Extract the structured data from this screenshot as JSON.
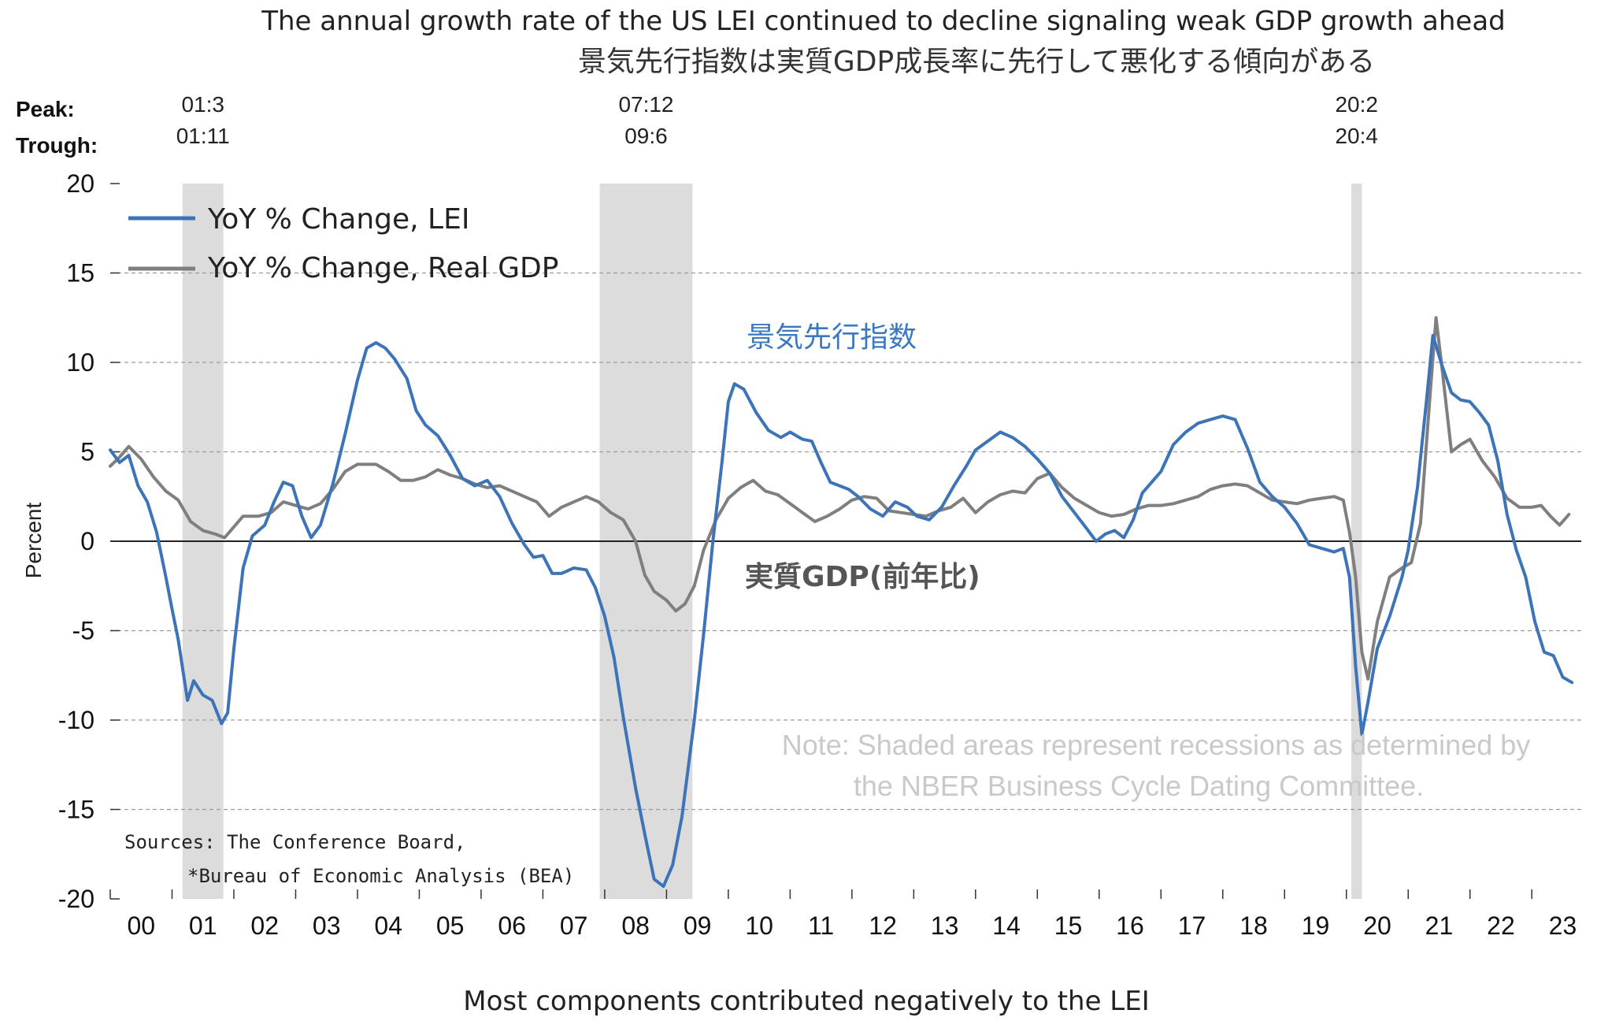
{
  "title": "The annual growth rate of the US LEI continued to decline signaling weak GDP growth ahead",
  "subtitle": "景気先行指数は実質GDP成長率に先行して悪化する傾向がある",
  "caption": "Most components contributed negatively to the LEI",
  "peak_label": "Peak:",
  "trough_label": "Trough:",
  "annotations": {
    "lei": "景気先行指数",
    "gdp": "実質GDP(前年比)",
    "note_line1": "Note: Shaded areas represent recessions as determined by",
    "note_line2": "the NBER Business Cycle Dating Committee.",
    "source_line1": "Sources: The Conference Board,",
    "source_line2": "*Bureau of Economic Analysis (BEA)"
  },
  "chart_data": {
    "type": "line",
    "ylabel": "Percent",
    "xlabel": "",
    "ylim": [
      -20,
      20
    ],
    "yticks": [
      -20,
      -15,
      -10,
      -5,
      0,
      5,
      10,
      15,
      20
    ],
    "xlim": [
      2000,
      2023.8
    ],
    "xtick_labels": [
      "00",
      "01",
      "02",
      "03",
      "04",
      "05",
      "06",
      "07",
      "08",
      "09",
      "10",
      "11",
      "12",
      "13",
      "14",
      "15",
      "16",
      "17",
      "18",
      "19",
      "20",
      "21",
      "22",
      "23"
    ],
    "grid": "horizontal-dashed",
    "legend_position": "top-left",
    "recessions": [
      {
        "peak": "01:3",
        "trough": "01:11",
        "start": 2001.17,
        "end": 2001.83
      },
      {
        "peak": "07:12",
        "trough": "09:6",
        "start": 2007.92,
        "end": 2009.42
      },
      {
        "peak": "20:2",
        "trough": "20:4",
        "start": 2020.08,
        "end": 2020.25
      }
    ],
    "series": [
      {
        "name": "YoY % Change, LEI",
        "color": "#3d74b8",
        "points": [
          [
            2000.0,
            5.1
          ],
          [
            2000.15,
            4.4
          ],
          [
            2000.3,
            4.8
          ],
          [
            2000.45,
            3.1
          ],
          [
            2000.6,
            2.2
          ],
          [
            2000.75,
            0.5
          ],
          [
            2000.9,
            -2.0
          ],
          [
            2001.0,
            -3.8
          ],
          [
            2001.1,
            -5.5
          ],
          [
            2001.25,
            -8.9
          ],
          [
            2001.35,
            -7.8
          ],
          [
            2001.5,
            -8.6
          ],
          [
            2001.65,
            -8.9
          ],
          [
            2001.8,
            -10.2
          ],
          [
            2001.9,
            -9.6
          ],
          [
            2002.0,
            -6.0
          ],
          [
            2002.15,
            -1.5
          ],
          [
            2002.3,
            0.3
          ],
          [
            2002.5,
            0.9
          ],
          [
            2002.65,
            2.2
          ],
          [
            2002.8,
            3.3
          ],
          [
            2002.95,
            3.1
          ],
          [
            2003.1,
            1.4
          ],
          [
            2003.25,
            0.2
          ],
          [
            2003.4,
            0.9
          ],
          [
            2003.6,
            3.2
          ],
          [
            2003.8,
            6.0
          ],
          [
            2004.0,
            9.0
          ],
          [
            2004.15,
            10.8
          ],
          [
            2004.3,
            11.1
          ],
          [
            2004.45,
            10.8
          ],
          [
            2004.6,
            10.2
          ],
          [
            2004.8,
            9.1
          ],
          [
            2004.95,
            7.3
          ],
          [
            2005.1,
            6.5
          ],
          [
            2005.3,
            5.9
          ],
          [
            2005.5,
            4.8
          ],
          [
            2005.7,
            3.5
          ],
          [
            2005.9,
            3.1
          ],
          [
            2006.1,
            3.4
          ],
          [
            2006.3,
            2.5
          ],
          [
            2006.5,
            1.0
          ],
          [
            2006.7,
            -0.2
          ],
          [
            2006.85,
            -0.9
          ],
          [
            2007.0,
            -0.8
          ],
          [
            2007.15,
            -1.8
          ],
          [
            2007.3,
            -1.8
          ],
          [
            2007.5,
            -1.5
          ],
          [
            2007.7,
            -1.6
          ],
          [
            2007.85,
            -2.6
          ],
          [
            2008.0,
            -4.2
          ],
          [
            2008.15,
            -6.5
          ],
          [
            2008.3,
            -9.8
          ],
          [
            2008.5,
            -13.8
          ],
          [
            2008.65,
            -16.4
          ],
          [
            2008.8,
            -18.9
          ],
          [
            2008.95,
            -19.3
          ],
          [
            2009.1,
            -18.1
          ],
          [
            2009.25,
            -15.4
          ],
          [
            2009.45,
            -10.0
          ],
          [
            2009.6,
            -5.2
          ],
          [
            2009.75,
            0.0
          ],
          [
            2009.9,
            4.5
          ],
          [
            2010.0,
            7.8
          ],
          [
            2010.1,
            8.8
          ],
          [
            2010.25,
            8.5
          ],
          [
            2010.45,
            7.2
          ],
          [
            2010.65,
            6.2
          ],
          [
            2010.85,
            5.8
          ],
          [
            2011.0,
            6.1
          ],
          [
            2011.2,
            5.7
          ],
          [
            2011.35,
            5.6
          ],
          [
            2011.5,
            4.4
          ],
          [
            2011.65,
            3.3
          ],
          [
            2011.8,
            3.1
          ],
          [
            2011.95,
            2.9
          ],
          [
            2012.1,
            2.5
          ],
          [
            2012.3,
            1.8
          ],
          [
            2012.5,
            1.4
          ],
          [
            2012.7,
            2.2
          ],
          [
            2012.9,
            1.9
          ],
          [
            2013.05,
            1.4
          ],
          [
            2013.25,
            1.2
          ],
          [
            2013.45,
            1.9
          ],
          [
            2013.65,
            3.1
          ],
          [
            2013.85,
            4.2
          ],
          [
            2014.0,
            5.1
          ],
          [
            2014.2,
            5.6
          ],
          [
            2014.4,
            6.1
          ],
          [
            2014.6,
            5.8
          ],
          [
            2014.8,
            5.3
          ],
          [
            2015.0,
            4.6
          ],
          [
            2015.2,
            3.8
          ],
          [
            2015.4,
            2.5
          ],
          [
            2015.6,
            1.6
          ],
          [
            2015.8,
            0.7
          ],
          [
            2015.95,
            0.0
          ],
          [
            2016.1,
            0.4
          ],
          [
            2016.25,
            0.6
          ],
          [
            2016.4,
            0.2
          ],
          [
            2016.55,
            1.2
          ],
          [
            2016.7,
            2.7
          ],
          [
            2016.85,
            3.3
          ],
          [
            2017.0,
            3.9
          ],
          [
            2017.2,
            5.4
          ],
          [
            2017.4,
            6.1
          ],
          [
            2017.6,
            6.6
          ],
          [
            2017.8,
            6.8
          ],
          [
            2018.0,
            7.0
          ],
          [
            2018.2,
            6.8
          ],
          [
            2018.4,
            5.2
          ],
          [
            2018.6,
            3.3
          ],
          [
            2018.8,
            2.5
          ],
          [
            2019.0,
            1.9
          ],
          [
            2019.2,
            1.0
          ],
          [
            2019.4,
            -0.2
          ],
          [
            2019.6,
            -0.4
          ],
          [
            2019.8,
            -0.6
          ],
          [
            2019.95,
            -0.4
          ],
          [
            2020.05,
            -2.0
          ],
          [
            2020.15,
            -7.0
          ],
          [
            2020.25,
            -10.8
          ],
          [
            2020.35,
            -9.0
          ],
          [
            2020.5,
            -6.0
          ],
          [
            2020.7,
            -4.2
          ],
          [
            2020.9,
            -2.0
          ],
          [
            2021.0,
            -0.5
          ],
          [
            2021.15,
            3.0
          ],
          [
            2021.3,
            8.0
          ],
          [
            2021.4,
            11.5
          ],
          [
            2021.55,
            9.8
          ],
          [
            2021.7,
            8.3
          ],
          [
            2021.85,
            7.9
          ],
          [
            2022.0,
            7.8
          ],
          [
            2022.15,
            7.2
          ],
          [
            2022.3,
            6.5
          ],
          [
            2022.45,
            4.5
          ],
          [
            2022.6,
            1.5
          ],
          [
            2022.75,
            -0.5
          ],
          [
            2022.9,
            -2.0
          ],
          [
            2023.05,
            -4.5
          ],
          [
            2023.2,
            -6.2
          ],
          [
            2023.35,
            -6.4
          ],
          [
            2023.5,
            -7.6
          ],
          [
            2023.65,
            -7.9
          ]
        ]
      },
      {
        "name": "YoY % Change, Real GDP",
        "color": "#7f7f7f",
        "points": [
          [
            2000.0,
            4.2
          ],
          [
            2000.15,
            4.7
          ],
          [
            2000.3,
            5.3
          ],
          [
            2000.5,
            4.6
          ],
          [
            2000.7,
            3.6
          ],
          [
            2000.9,
            2.8
          ],
          [
            2001.1,
            2.3
          ],
          [
            2001.3,
            1.1
          ],
          [
            2001.5,
            0.6
          ],
          [
            2001.7,
            0.4
          ],
          [
            2001.85,
            0.2
          ],
          [
            2002.0,
            0.8
          ],
          [
            2002.15,
            1.4
          ],
          [
            2002.4,
            1.4
          ],
          [
            2002.6,
            1.6
          ],
          [
            2002.8,
            2.2
          ],
          [
            2003.0,
            2.0
          ],
          [
            2003.2,
            1.8
          ],
          [
            2003.4,
            2.1
          ],
          [
            2003.6,
            2.9
          ],
          [
            2003.8,
            3.9
          ],
          [
            2004.0,
            4.3
          ],
          [
            2004.3,
            4.3
          ],
          [
            2004.5,
            3.9
          ],
          [
            2004.7,
            3.4
          ],
          [
            2004.9,
            3.4
          ],
          [
            2005.1,
            3.6
          ],
          [
            2005.3,
            4.0
          ],
          [
            2005.5,
            3.7
          ],
          [
            2005.7,
            3.5
          ],
          [
            2005.9,
            3.2
          ],
          [
            2006.1,
            3.0
          ],
          [
            2006.3,
            3.1
          ],
          [
            2006.5,
            2.8
          ],
          [
            2006.7,
            2.5
          ],
          [
            2006.9,
            2.2
          ],
          [
            2007.1,
            1.4
          ],
          [
            2007.3,
            1.9
          ],
          [
            2007.5,
            2.2
          ],
          [
            2007.7,
            2.5
          ],
          [
            2007.9,
            2.2
          ],
          [
            2008.1,
            1.6
          ],
          [
            2008.3,
            1.2
          ],
          [
            2008.5,
            0.0
          ],
          [
            2008.65,
            -1.9
          ],
          [
            2008.8,
            -2.8
          ],
          [
            2009.0,
            -3.3
          ],
          [
            2009.15,
            -3.9
          ],
          [
            2009.3,
            -3.5
          ],
          [
            2009.45,
            -2.5
          ],
          [
            2009.6,
            -0.5
          ],
          [
            2009.8,
            1.2
          ],
          [
            2010.0,
            2.4
          ],
          [
            2010.2,
            3.0
          ],
          [
            2010.4,
            3.4
          ],
          [
            2010.6,
            2.8
          ],
          [
            2010.8,
            2.6
          ],
          [
            2011.0,
            2.1
          ],
          [
            2011.2,
            1.6
          ],
          [
            2011.4,
            1.1
          ],
          [
            2011.6,
            1.4
          ],
          [
            2011.8,
            1.8
          ],
          [
            2012.0,
            2.3
          ],
          [
            2012.2,
            2.5
          ],
          [
            2012.4,
            2.4
          ],
          [
            2012.6,
            1.7
          ],
          [
            2012.8,
            1.6
          ],
          [
            2013.0,
            1.5
          ],
          [
            2013.2,
            1.4
          ],
          [
            2013.4,
            1.7
          ],
          [
            2013.6,
            1.9
          ],
          [
            2013.8,
            2.4
          ],
          [
            2014.0,
            1.6
          ],
          [
            2014.2,
            2.2
          ],
          [
            2014.4,
            2.6
          ],
          [
            2014.6,
            2.8
          ],
          [
            2014.8,
            2.7
          ],
          [
            2015.0,
            3.5
          ],
          [
            2015.2,
            3.8
          ],
          [
            2015.4,
            3.0
          ],
          [
            2015.6,
            2.4
          ],
          [
            2015.8,
            2.0
          ],
          [
            2016.0,
            1.6
          ],
          [
            2016.2,
            1.4
          ],
          [
            2016.4,
            1.5
          ],
          [
            2016.6,
            1.8
          ],
          [
            2016.8,
            2.0
          ],
          [
            2017.0,
            2.0
          ],
          [
            2017.2,
            2.1
          ],
          [
            2017.4,
            2.3
          ],
          [
            2017.6,
            2.5
          ],
          [
            2017.8,
            2.9
          ],
          [
            2018.0,
            3.1
          ],
          [
            2018.2,
            3.2
          ],
          [
            2018.4,
            3.1
          ],
          [
            2018.6,
            2.7
          ],
          [
            2018.8,
            2.3
          ],
          [
            2019.0,
            2.2
          ],
          [
            2019.2,
            2.1
          ],
          [
            2019.4,
            2.3
          ],
          [
            2019.6,
            2.4
          ],
          [
            2019.8,
            2.5
          ],
          [
            2019.95,
            2.3
          ],
          [
            2020.05,
            0.5
          ],
          [
            2020.15,
            -2.0
          ],
          [
            2020.25,
            -6.2
          ],
          [
            2020.35,
            -7.7
          ],
          [
            2020.5,
            -4.5
          ],
          [
            2020.7,
            -2.0
          ],
          [
            2020.9,
            -1.5
          ],
          [
            2021.05,
            -1.2
          ],
          [
            2021.2,
            1.0
          ],
          [
            2021.35,
            8.0
          ],
          [
            2021.45,
            12.5
          ],
          [
            2021.55,
            9.6
          ],
          [
            2021.7,
            5.0
          ],
          [
            2021.85,
            5.4
          ],
          [
            2022.0,
            5.7
          ],
          [
            2022.2,
            4.5
          ],
          [
            2022.4,
            3.6
          ],
          [
            2022.6,
            2.4
          ],
          [
            2022.8,
            1.9
          ],
          [
            2023.0,
            1.9
          ],
          [
            2023.15,
            2.0
          ],
          [
            2023.3,
            1.4
          ],
          [
            2023.45,
            0.9
          ],
          [
            2023.6,
            1.5
          ]
        ]
      }
    ]
  }
}
